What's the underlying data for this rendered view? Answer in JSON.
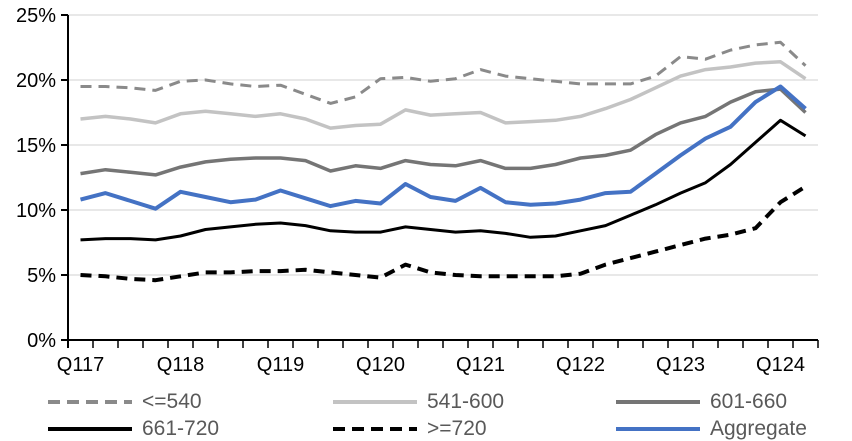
{
  "chart_data": {
    "type": "line",
    "title": "",
    "x_tick_labels": [
      "Q117",
      "Q118",
      "Q119",
      "Q120",
      "Q121",
      "Q122",
      "Q123",
      "Q124"
    ],
    "points_per_label": 4,
    "n_points": 30,
    "ylim": [
      0,
      25
    ],
    "ytick_step": 5,
    "ytick_labels": [
      "0%",
      "5%",
      "10%",
      "15%",
      "20%",
      "25%"
    ],
    "grid": "horizontal",
    "gridline_color": "#d9d9d9",
    "axis_color": "#000000",
    "legend_position": "bottom",
    "series": [
      {
        "name": "<=540",
        "color": "#8a8a8a",
        "dash": true,
        "width": 3,
        "values": [
          19.5,
          19.5,
          19.4,
          19.2,
          19.9,
          20.0,
          19.7,
          19.5,
          19.6,
          18.9,
          18.2,
          18.7,
          20.1,
          20.2,
          19.9,
          20.1,
          20.8,
          20.3,
          20.1,
          19.9,
          19.7,
          19.7,
          19.7,
          20.3,
          21.8,
          21.6,
          22.3,
          22.7,
          22.9,
          21.1
        ]
      },
      {
        "name": "541-600",
        "color": "#c3c3c3",
        "dash": false,
        "width": 3.5,
        "values": [
          17.0,
          17.2,
          17.0,
          16.7,
          17.4,
          17.6,
          17.4,
          17.2,
          17.4,
          17.0,
          16.3,
          16.5,
          16.6,
          17.7,
          17.3,
          17.4,
          17.5,
          16.7,
          16.8,
          16.9,
          17.2,
          17.8,
          18.5,
          19.4,
          20.3,
          20.8,
          21.0,
          21.3,
          21.4,
          20.1
        ]
      },
      {
        "name": "601-660",
        "color": "#757575",
        "dash": false,
        "width": 3.5,
        "values": [
          12.8,
          13.1,
          12.9,
          12.7,
          13.3,
          13.7,
          13.9,
          14.0,
          14.0,
          13.8,
          13.0,
          13.4,
          13.2,
          13.8,
          13.5,
          13.4,
          13.8,
          13.2,
          13.2,
          13.5,
          14.0,
          14.2,
          14.6,
          15.8,
          16.7,
          17.2,
          18.3,
          19.1,
          19.3,
          17.5
        ]
      },
      {
        "name": "661-720",
        "color": "#000000",
        "dash": false,
        "width": 3,
        "values": [
          7.7,
          7.8,
          7.8,
          7.7,
          8.0,
          8.5,
          8.7,
          8.9,
          9.0,
          8.8,
          8.4,
          8.3,
          8.3,
          8.7,
          8.5,
          8.3,
          8.4,
          8.2,
          7.9,
          8.0,
          8.4,
          8.8,
          9.6,
          10.4,
          11.3,
          12.1,
          13.5,
          15.2,
          16.9,
          15.7
        ]
      },
      {
        "name": ">=720",
        "color": "#000000",
        "dash": true,
        "width": 4,
        "values": [
          5.0,
          4.9,
          4.7,
          4.6,
          4.9,
          5.2,
          5.2,
          5.3,
          5.3,
          5.4,
          5.2,
          5.0,
          4.8,
          5.8,
          5.2,
          5.0,
          4.9,
          4.9,
          4.9,
          4.9,
          5.1,
          5.8,
          6.3,
          6.8,
          7.3,
          7.8,
          8.1,
          8.6,
          10.6,
          11.8
        ]
      },
      {
        "name": "Aggregate",
        "color": "#4472c4",
        "dash": false,
        "width": 4,
        "values": [
          10.8,
          11.3,
          10.7,
          10.1,
          11.4,
          11.0,
          10.6,
          10.8,
          11.5,
          10.9,
          10.3,
          10.7,
          10.5,
          12.0,
          11.0,
          10.7,
          11.7,
          10.6,
          10.4,
          10.5,
          10.8,
          11.3,
          11.4,
          12.8,
          14.2,
          15.5,
          16.4,
          18.3,
          19.5,
          17.8
        ]
      }
    ]
  },
  "legend": {
    "rows": [
      [
        "<=540",
        "541-600",
        "601-660"
      ],
      [
        "661-720",
        ">=720",
        "Aggregate"
      ]
    ]
  }
}
